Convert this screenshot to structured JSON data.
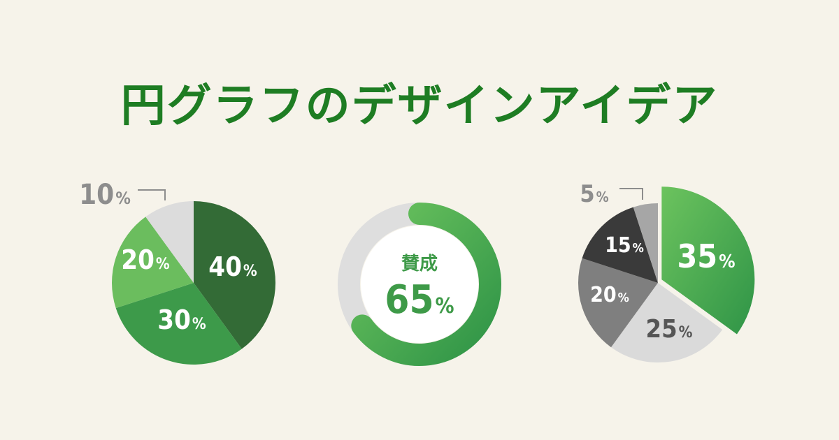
{
  "title": "円グラフのデザインアイデア",
  "chart_data": [
    {
      "type": "pie",
      "categories": [
        "",
        "",
        "",
        ""
      ],
      "values": [
        40,
        30,
        20,
        10
      ],
      "labels": [
        "40%",
        "30%",
        "20%",
        "10%"
      ],
      "colors": [
        "#336b36",
        "#3d9a4a",
        "#6bbd5e",
        "#dcdcdc"
      ]
    },
    {
      "type": "pie",
      "style": "donut",
      "categories": [
        "賛成",
        ""
      ],
      "values": [
        65,
        35
      ],
      "center_label": "賛成",
      "center_value": "65%",
      "colors": [
        "#4aa24f",
        "#dedede"
      ]
    },
    {
      "type": "pie",
      "categories": [
        "",
        "",
        "",
        "",
        ""
      ],
      "values": [
        35,
        25,
        20,
        15,
        5
      ],
      "labels": [
        "35%",
        "25%",
        "20%",
        "15%",
        "5%"
      ],
      "colors": [
        "#4aa24f",
        "#dadada",
        "#7f7f7f",
        "#3a3a3a",
        "#a6a6a6"
      ]
    }
  ]
}
